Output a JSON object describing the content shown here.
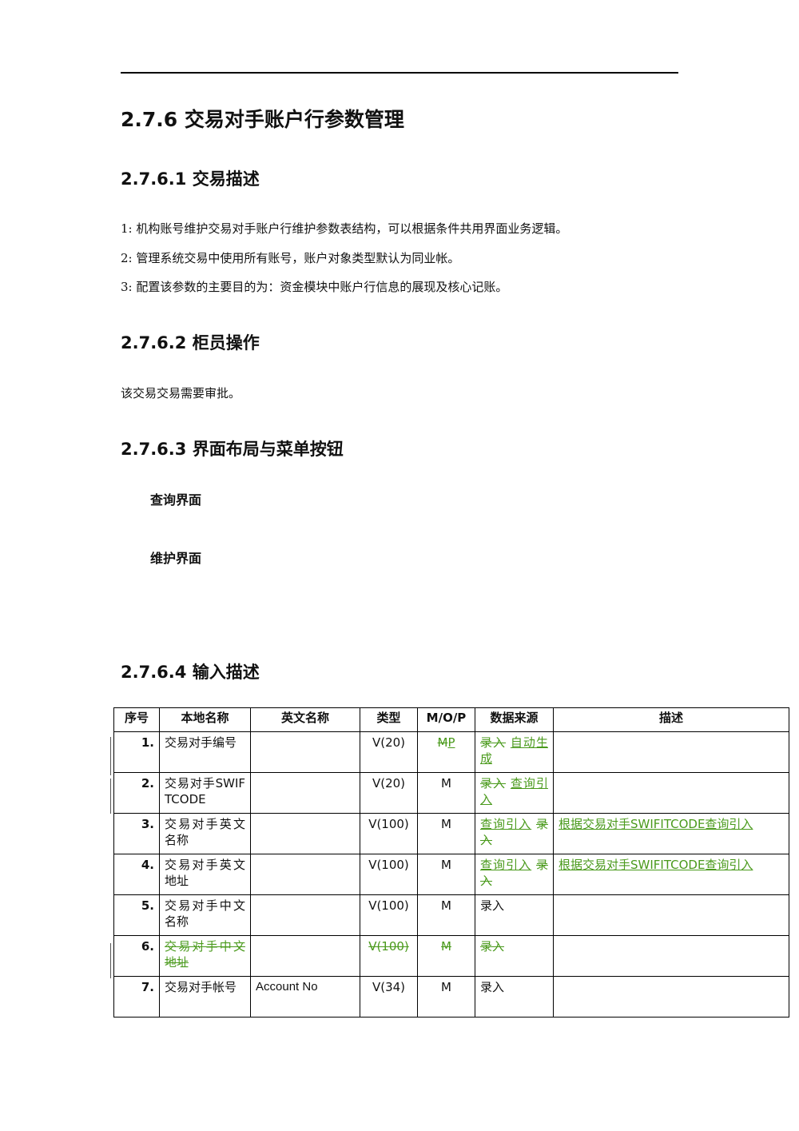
{
  "heading": "2.7.6  交易对手账户行参数管理",
  "sections": {
    "s1_title": "2.7.6.1 交易描述",
    "s1_lines": [
      "1: 机构账号维护交易对手账户行维护参数表结构，可以根据条件共用界面业务逻辑。",
      "2: 管理系统交易中使用所有账号，账户对象类型默认为同业帐。",
      "3: 配置该参数的主要目的为：资金模块中账户行信息的展现及核心记账。"
    ],
    "s2_title": "2.7.6.2 柜员操作",
    "s2_text": "该交易交易需要审批。",
    "s3_title": "2.7.6.3 界面布局与菜单按钮",
    "s3_sub1": "查询界面",
    "s3_sub2": "维护界面",
    "s4_title": "2.7.6.4 输入描述"
  },
  "table": {
    "headers": [
      "序号",
      "本地名称",
      "英文名称",
      "类型",
      "M/O/P",
      "数据来源",
      "描述"
    ],
    "rows": [
      {
        "seq": "1.",
        "name": "交易对手编号",
        "en": "",
        "type": "V(20)",
        "mop_del": "M",
        "mop_ins": "P",
        "src_del": "录入",
        "src_ins": "自动生成",
        "desc": ""
      },
      {
        "seq": "2.",
        "name": "交易对手SWIFTCODE",
        "en": "",
        "type": "V(20)",
        "mop": "M",
        "src_del": "录入",
        "src_ins": "查询引入",
        "desc": ""
      },
      {
        "seq": "3.",
        "name": "交易对手英文名称",
        "en": "",
        "type": "V(100)",
        "mop": "M",
        "src_ins": "查询引入",
        "src_del": "录入",
        "desc_ins": "根据交易对手SWIFITCODE查询引入"
      },
      {
        "seq": "4.",
        "name": "交易对手英文地址",
        "en": "",
        "type": "V(100)",
        "mop": "M",
        "src_ins": "查询引入",
        "src_del": "录入",
        "desc_ins": "根据交易对手SWIFITCODE查询引入"
      },
      {
        "seq": "5.",
        "name": "交易对手中文名称",
        "en": "",
        "type": "V(100)",
        "mop": "M",
        "src": "录入",
        "desc": ""
      },
      {
        "seq": "6.",
        "name_del": "交易对手中文地址",
        "en": "",
        "type_del": "V(100)",
        "mop_del": "M",
        "src_del": "录入",
        "desc": ""
      },
      {
        "seq": "7.",
        "name": "交易对手帐号",
        "en": "Account No",
        "type": "V(34)",
        "mop": "M",
        "src": "录入",
        "desc": ""
      }
    ]
  }
}
